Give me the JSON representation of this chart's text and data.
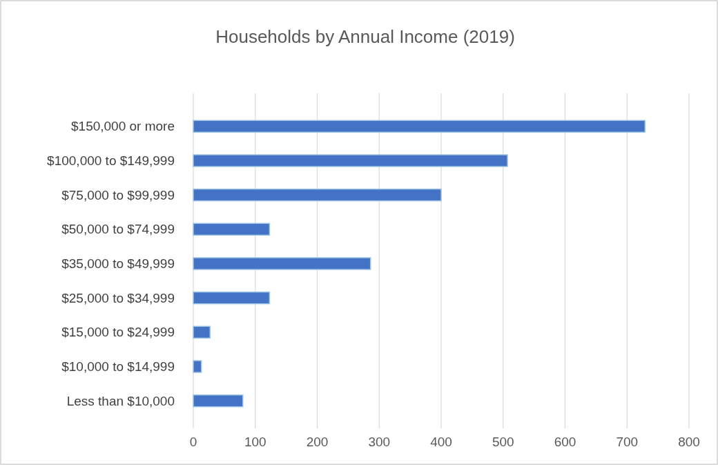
{
  "chart_data": {
    "type": "bar",
    "orientation": "horizontal",
    "title": "Households by Annual Income  (2019)",
    "categories": [
      "$150,000 or more",
      "$100,000 to $149,999",
      "$75,000 to $99,999",
      "$50,000 to $74,999",
      "$35,000 to $49,999",
      "$25,000 to $34,999",
      "$15,000 to $24,999",
      "$10,000 to $14,999",
      "Less than $10,000"
    ],
    "values": [
      729,
      507,
      400,
      123,
      286,
      123,
      27,
      13,
      80
    ],
    "color": "#4472c4",
    "xlim": [
      0,
      800
    ],
    "xticks": [
      0,
      100,
      200,
      300,
      400,
      500,
      600,
      700,
      800
    ],
    "grid": "x"
  }
}
